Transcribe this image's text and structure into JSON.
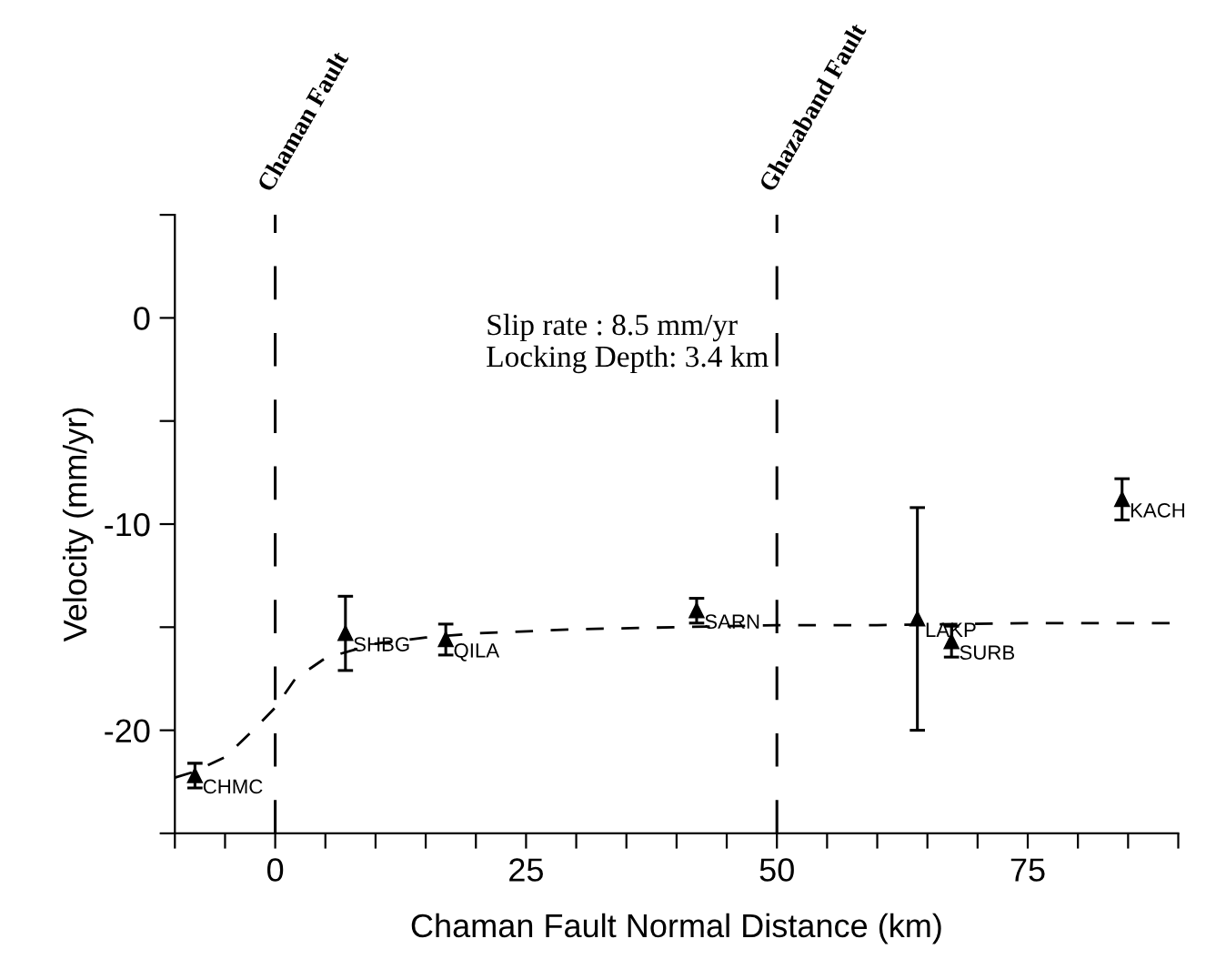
{
  "chart_data": {
    "type": "scatter",
    "xlabel": "Chaman Fault Normal Distance (km)",
    "ylabel": "Velocity (mm/yr)",
    "xlim": [
      -10,
      90
    ],
    "ylim": [
      -25,
      5
    ],
    "xticks": [
      {
        "value": -10,
        "label": null
      },
      {
        "value": -5,
        "label": null
      },
      0,
      {
        "value": 5,
        "label": null
      },
      {
        "value": 10,
        "label": null
      },
      {
        "value": 15,
        "label": null
      },
      {
        "value": 20,
        "label": null
      },
      25,
      {
        "value": 30,
        "label": null
      },
      {
        "value": 35,
        "label": null
      },
      {
        "value": 40,
        "label": null
      },
      {
        "value": 45,
        "label": null
      },
      50,
      {
        "value": 55,
        "label": null
      },
      {
        "value": 60,
        "label": null
      },
      {
        "value": 65,
        "label": null
      },
      {
        "value": 70,
        "label": null
      },
      75,
      {
        "value": 80,
        "label": null
      },
      {
        "value": 85,
        "label": null
      },
      {
        "value": 90,
        "label": null
      }
    ],
    "yticks": [
      {
        "value": -25,
        "label": null
      },
      -20,
      {
        "value": -15,
        "label": null
      },
      -10,
      {
        "value": -5,
        "label": null
      },
      0,
      {
        "value": 5,
        "label": null
      }
    ],
    "grid": false,
    "legend": false,
    "series": [
      {
        "color": "#000000",
        "marker": "triangle",
        "x": [
          -8,
          7,
          17,
          42,
          64,
          67.4,
          84.4
        ],
        "values": [
          -22.2,
          -15.3,
          -15.6,
          -14.2,
          -14.6,
          -15.7,
          -8.8
        ],
        "errors": [
          0.6,
          1.8,
          0.75,
          0.6,
          5.4,
          0.75,
          1.0
        ]
      },
      {
        "type": "line",
        "color": "#000000",
        "line_style": "dashed",
        "marker": "none",
        "x": [
          -10,
          -8,
          -5,
          -2,
          0,
          2,
          5,
          10,
          15,
          20,
          30,
          40,
          50,
          60,
          75,
          90
        ],
        "values": [
          -22.3,
          -22.0,
          -21.3,
          -19.9,
          -18.9,
          -17.5,
          -16.5,
          -15.8,
          -15.5,
          -15.3,
          -15.1,
          -15.0,
          -14.9,
          -14.9,
          -14.8,
          -14.8
        ]
      }
    ],
    "ref_lines": [
      {
        "axis": "x",
        "value": 0,
        "label": "Chaman Fault",
        "color": "#000000",
        "line_style": "dashed"
      },
      {
        "axis": "x",
        "value": 50,
        "label": "Ghazaband Fault",
        "color": "#000000",
        "line_style": "dashed"
      }
    ],
    "annotations": [
      "Slip rate : 8.5 mm/yr\nLocking Depth: 3.4 km",
      {
        "text": "CHMC",
        "x": -8,
        "y": -22.2
      },
      {
        "text": "SHBG",
        "x": 7,
        "y": -15.3
      },
      {
        "text": "QILA",
        "x": 17,
        "y": -15.6
      },
      {
        "text": "SARN",
        "x": 42,
        "y": -14.2
      },
      {
        "text": "LAKP",
        "x": 64,
        "y": -14.6
      },
      {
        "text": "SURB",
        "x": 67.4,
        "y": -15.7
      },
      {
        "text": "KACH",
        "x": 84.4,
        "y": -8.8
      }
    ]
  }
}
